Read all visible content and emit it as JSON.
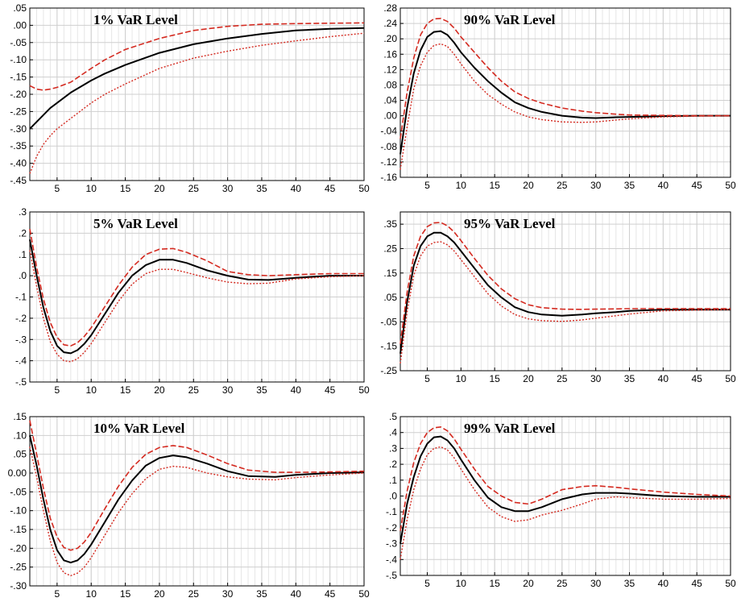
{
  "chart_data": [
    {
      "type": "line",
      "title": "1% VaR Level",
      "xlim": [
        1,
        50
      ],
      "ylim": [
        -0.45,
        0.05
      ],
      "xticks": [
        5,
        10,
        15,
        20,
        25,
        30,
        35,
        40,
        45,
        50
      ],
      "xtick_labels": [
        "5",
        "10",
        "15",
        "20",
        "25",
        "30",
        "35",
        "40",
        "45",
        "50"
      ],
      "yticks": [
        0.05,
        0.0,
        -0.05,
        -0.1,
        -0.15,
        -0.2,
        -0.25,
        -0.3,
        -0.35,
        -0.4,
        -0.45
      ],
      "ytick_labels": [
        ".05",
        ".00",
        "-.05",
        "-.10",
        "-.15",
        "-.20",
        "-.25",
        "-.30",
        "-.35",
        "-.40",
        "-.45"
      ],
      "grid": true,
      "x": [
        1,
        2,
        3,
        4,
        5,
        7,
        10,
        12,
        15,
        20,
        25,
        30,
        35,
        40,
        45,
        50
      ],
      "series": [
        {
          "style": "solid",
          "color": "#000000",
          "values": [
            -0.3,
            -0.28,
            -0.26,
            -0.24,
            -0.225,
            -0.195,
            -0.16,
            -0.14,
            -0.115,
            -0.08,
            -0.055,
            -0.038,
            -0.025,
            -0.015,
            -0.01,
            -0.008
          ]
        },
        {
          "style": "dashed",
          "color": "#d42a20",
          "values": [
            -0.175,
            -0.185,
            -0.188,
            -0.185,
            -0.18,
            -0.165,
            -0.125,
            -0.1,
            -0.07,
            -0.038,
            -0.015,
            -0.003,
            0.003,
            0.005,
            0.006,
            0.007
          ]
        },
        {
          "style": "dotted",
          "color": "#d42a20",
          "values": [
            -0.43,
            -0.38,
            -0.345,
            -0.32,
            -0.3,
            -0.27,
            -0.225,
            -0.2,
            -0.17,
            -0.125,
            -0.095,
            -0.075,
            -0.058,
            -0.045,
            -0.033,
            -0.023
          ]
        }
      ]
    },
    {
      "type": "line",
      "title": "90% VaR Level",
      "xlim": [
        1,
        50
      ],
      "ylim": [
        -0.16,
        0.28
      ],
      "xticks": [
        5,
        10,
        15,
        20,
        25,
        30,
        35,
        40,
        45,
        50
      ],
      "xtick_labels": [
        "5",
        "10",
        "15",
        "20",
        "25",
        "30",
        "35",
        "40",
        "45",
        "50"
      ],
      "yticks": [
        0.28,
        0.24,
        0.2,
        0.16,
        0.12,
        0.08,
        0.04,
        0.0,
        -0.04,
        -0.08,
        -0.12,
        -0.16
      ],
      "ytick_labels": [
        ".28",
        ".24",
        ".20",
        ".16",
        ".12",
        ".08",
        ".04",
        ".00",
        "-.04",
        "-.08",
        "-.12",
        "-.16"
      ],
      "grid": true,
      "x": [
        1,
        2,
        3,
        4,
        5,
        6,
        7,
        8,
        9,
        10,
        12,
        14,
        16,
        18,
        20,
        22,
        25,
        28,
        30,
        33,
        35,
        40,
        45,
        50
      ],
      "series": [
        {
          "style": "solid",
          "color": "#000000",
          "values": [
            -0.1,
            0.02,
            0.11,
            0.17,
            0.205,
            0.218,
            0.22,
            0.21,
            0.19,
            0.165,
            0.125,
            0.09,
            0.06,
            0.035,
            0.02,
            0.01,
            0.0,
            -0.005,
            -0.006,
            -0.004,
            -0.003,
            -0.001,
            0.0,
            0.0
          ]
        },
        {
          "style": "dashed",
          "color": "#d42a20",
          "values": [
            -0.06,
            0.06,
            0.15,
            0.21,
            0.24,
            0.252,
            0.253,
            0.245,
            0.228,
            0.205,
            0.165,
            0.125,
            0.09,
            0.062,
            0.045,
            0.033,
            0.02,
            0.012,
            0.008,
            0.004,
            0.002,
            0.001,
            0.0,
            0.0
          ]
        },
        {
          "style": "dotted",
          "color": "#d42a20",
          "values": [
            -0.14,
            -0.03,
            0.07,
            0.13,
            0.165,
            0.183,
            0.187,
            0.18,
            0.16,
            0.135,
            0.09,
            0.055,
            0.03,
            0.01,
            -0.003,
            -0.01,
            -0.016,
            -0.017,
            -0.016,
            -0.011,
            -0.008,
            -0.003,
            -0.001,
            0.0
          ]
        }
      ]
    },
    {
      "type": "line",
      "title": "5% VaR Level",
      "xlim": [
        1,
        50
      ],
      "ylim": [
        -0.5,
        0.3
      ],
      "xticks": [
        5,
        10,
        15,
        20,
        25,
        30,
        35,
        40,
        45,
        50
      ],
      "xtick_labels": [
        "5",
        "10",
        "15",
        "20",
        "25",
        "30",
        "35",
        "40",
        "45",
        "50"
      ],
      "yticks": [
        0.3,
        0.2,
        0.1,
        0.0,
        -0.1,
        -0.2,
        -0.3,
        -0.4,
        -0.5
      ],
      "ytick_labels": [
        ".3",
        ".2",
        ".1",
        ".0",
        "-.1",
        "-.2",
        "-.3",
        "-.4",
        "-.5"
      ],
      "grid": true,
      "x": [
        1,
        2,
        3,
        4,
        5,
        6,
        7,
        8,
        9,
        10,
        12,
        14,
        16,
        18,
        20,
        22,
        24,
        27,
        30,
        33,
        36,
        40,
        45,
        50
      ],
      "series": [
        {
          "style": "solid",
          "color": "#000000",
          "values": [
            0.17,
            0.0,
            -0.15,
            -0.26,
            -0.33,
            -0.36,
            -0.365,
            -0.35,
            -0.32,
            -0.28,
            -0.18,
            -0.08,
            0.0,
            0.05,
            0.075,
            0.075,
            0.06,
            0.025,
            0.0,
            -0.018,
            -0.02,
            -0.01,
            0.0,
            0.0
          ]
        },
        {
          "style": "dashed",
          "color": "#d42a20",
          "values": [
            0.22,
            0.04,
            -0.11,
            -0.22,
            -0.29,
            -0.325,
            -0.33,
            -0.315,
            -0.285,
            -0.245,
            -0.145,
            -0.045,
            0.04,
            0.1,
            0.125,
            0.128,
            0.11,
            0.07,
            0.02,
            0.005,
            0.0,
            0.005,
            0.01,
            0.01
          ]
        },
        {
          "style": "dotted",
          "color": "#d42a20",
          "values": [
            0.12,
            -0.05,
            -0.2,
            -0.31,
            -0.37,
            -0.4,
            -0.405,
            -0.39,
            -0.36,
            -0.32,
            -0.22,
            -0.12,
            -0.04,
            0.01,
            0.03,
            0.03,
            0.015,
            -0.01,
            -0.03,
            -0.038,
            -0.035,
            -0.015,
            -0.005,
            0.0
          ]
        }
      ]
    },
    {
      "type": "line",
      "title": "95% VaR Level",
      "xlim": [
        1,
        50
      ],
      "ylim": [
        -0.25,
        0.4
      ],
      "xticks": [
        5,
        10,
        15,
        20,
        25,
        30,
        35,
        40,
        45,
        50
      ],
      "xtick_labels": [
        "5",
        "10",
        "15",
        "20",
        "25",
        "30",
        "35",
        "40",
        "45",
        "50"
      ],
      "yticks": [
        0.35,
        0.25,
        0.15,
        0.05,
        -0.05,
        -0.15,
        -0.25
      ],
      "ytick_labels": [
        ".35",
        ".25",
        ".15",
        ".05",
        "-.05",
        "-.15",
        "-.25"
      ],
      "grid": true,
      "x": [
        1,
        2,
        3,
        4,
        5,
        6,
        7,
        8,
        9,
        10,
        12,
        14,
        16,
        18,
        20,
        22,
        25,
        28,
        30,
        33,
        35,
        40,
        45,
        50
      ],
      "series": [
        {
          "style": "solid",
          "color": "#000000",
          "values": [
            -0.18,
            0.03,
            0.18,
            0.26,
            0.3,
            0.315,
            0.315,
            0.3,
            0.275,
            0.24,
            0.17,
            0.1,
            0.05,
            0.01,
            -0.01,
            -0.02,
            -0.025,
            -0.02,
            -0.015,
            -0.01,
            -0.005,
            0.0,
            0.0,
            0.0
          ]
        },
        {
          "style": "dashed",
          "color": "#d42a20",
          "values": [
            -0.14,
            0.07,
            0.22,
            0.3,
            0.34,
            0.355,
            0.357,
            0.343,
            0.318,
            0.283,
            0.21,
            0.14,
            0.085,
            0.045,
            0.02,
            0.008,
            0.002,
            0.001,
            0.002,
            0.003,
            0.004,
            0.004,
            0.004,
            0.004
          ]
        },
        {
          "style": "dotted",
          "color": "#d42a20",
          "values": [
            -0.22,
            -0.01,
            0.14,
            0.22,
            0.26,
            0.275,
            0.278,
            0.265,
            0.24,
            0.205,
            0.135,
            0.065,
            0.015,
            -0.02,
            -0.038,
            -0.045,
            -0.048,
            -0.042,
            -0.035,
            -0.025,
            -0.018,
            -0.005,
            -0.002,
            0.0
          ]
        }
      ]
    },
    {
      "type": "line",
      "title": "10% VaR Level",
      "xlim": [
        1,
        50
      ],
      "ylim": [
        -0.3,
        0.15
      ],
      "xticks": [
        5,
        10,
        15,
        20,
        25,
        30,
        35,
        40,
        45,
        50
      ],
      "xtick_labels": [
        "5",
        "10",
        "15",
        "20",
        "25",
        "30",
        "35",
        "40",
        "45",
        "50"
      ],
      "yticks": [
        0.15,
        0.1,
        0.05,
        0.0,
        -0.05,
        -0.1,
        -0.15,
        -0.2,
        -0.25,
        -0.3
      ],
      "ytick_labels": [
        ".15",
        ".10",
        ".05",
        "0.00",
        "-.05",
        "-.10",
        "-.15",
        "-.20",
        "-.25",
        "-.30"
      ],
      "grid": true,
      "x": [
        1,
        2,
        3,
        4,
        5,
        6,
        7,
        8,
        9,
        10,
        12,
        14,
        16,
        18,
        20,
        22,
        24,
        27,
        30,
        33,
        37,
        40,
        45,
        50
      ],
      "series": [
        {
          "style": "solid",
          "color": "#000000",
          "values": [
            0.1,
            0.02,
            -0.07,
            -0.15,
            -0.205,
            -0.232,
            -0.238,
            -0.232,
            -0.215,
            -0.19,
            -0.13,
            -0.07,
            -0.02,
            0.02,
            0.04,
            0.047,
            0.042,
            0.025,
            0.005,
            -0.008,
            -0.01,
            -0.005,
            0.0,
            0.002
          ]
        },
        {
          "style": "dashed",
          "color": "#d42a20",
          "values": [
            0.14,
            0.05,
            -0.04,
            -0.12,
            -0.17,
            -0.198,
            -0.205,
            -0.2,
            -0.183,
            -0.158,
            -0.095,
            -0.035,
            0.015,
            0.05,
            0.068,
            0.073,
            0.068,
            0.048,
            0.025,
            0.008,
            0.002,
            0.002,
            0.003,
            0.005
          ]
        },
        {
          "style": "dotted",
          "color": "#d42a20",
          "values": [
            0.07,
            -0.01,
            -0.1,
            -0.18,
            -0.238,
            -0.265,
            -0.273,
            -0.266,
            -0.25,
            -0.225,
            -0.165,
            -0.105,
            -0.055,
            -0.015,
            0.01,
            0.018,
            0.015,
            0.0,
            -0.01,
            -0.016,
            -0.018,
            -0.012,
            -0.005,
            0.0
          ]
        }
      ]
    },
    {
      "type": "line",
      "title": "99% VaR Level",
      "xlim": [
        1,
        50
      ],
      "ylim": [
        -0.5,
        0.5
      ],
      "xticks": [
        5,
        10,
        15,
        20,
        25,
        30,
        35,
        40,
        45,
        50
      ],
      "xtick_labels": [
        "5",
        "10",
        "15",
        "20",
        "25",
        "30",
        "35",
        "40",
        "45",
        "50"
      ],
      "yticks": [
        0.5,
        0.4,
        0.3,
        0.2,
        0.1,
        0.0,
        -0.1,
        -0.2,
        -0.3,
        -0.4,
        -0.5
      ],
      "ytick_labels": [
        ".5",
        ".4",
        ".3",
        ".2",
        ".1",
        ".0",
        "-.1",
        "-.2",
        "-.3",
        "-.4",
        "-.5"
      ],
      "grid": true,
      "x": [
        1,
        2,
        3,
        4,
        5,
        6,
        7,
        8,
        9,
        10,
        12,
        14,
        16,
        18,
        20,
        22,
        25,
        28,
        30,
        33,
        35,
        40,
        45,
        50
      ],
      "series": [
        {
          "style": "solid",
          "color": "#000000",
          "values": [
            -0.3,
            -0.05,
            0.12,
            0.25,
            0.33,
            0.37,
            0.375,
            0.35,
            0.3,
            0.23,
            0.1,
            -0.01,
            -0.07,
            -0.095,
            -0.095,
            -0.07,
            -0.02,
            0.01,
            0.02,
            0.02,
            0.015,
            0.0,
            -0.005,
            -0.005
          ]
        },
        {
          "style": "dashed",
          "color": "#d42a20",
          "values": [
            -0.22,
            0.03,
            0.21,
            0.33,
            0.4,
            0.43,
            0.435,
            0.41,
            0.36,
            0.295,
            0.17,
            0.06,
            0.0,
            -0.04,
            -0.05,
            -0.02,
            0.04,
            0.06,
            0.065,
            0.055,
            0.045,
            0.025,
            0.01,
            0.0
          ]
        },
        {
          "style": "dotted",
          "color": "#d42a20",
          "values": [
            -0.4,
            -0.15,
            0.04,
            0.17,
            0.26,
            0.3,
            0.31,
            0.29,
            0.24,
            0.17,
            0.04,
            -0.07,
            -0.13,
            -0.16,
            -0.15,
            -0.12,
            -0.09,
            -0.05,
            -0.02,
            -0.005,
            -0.01,
            -0.02,
            -0.02,
            -0.015
          ]
        }
      ]
    }
  ]
}
